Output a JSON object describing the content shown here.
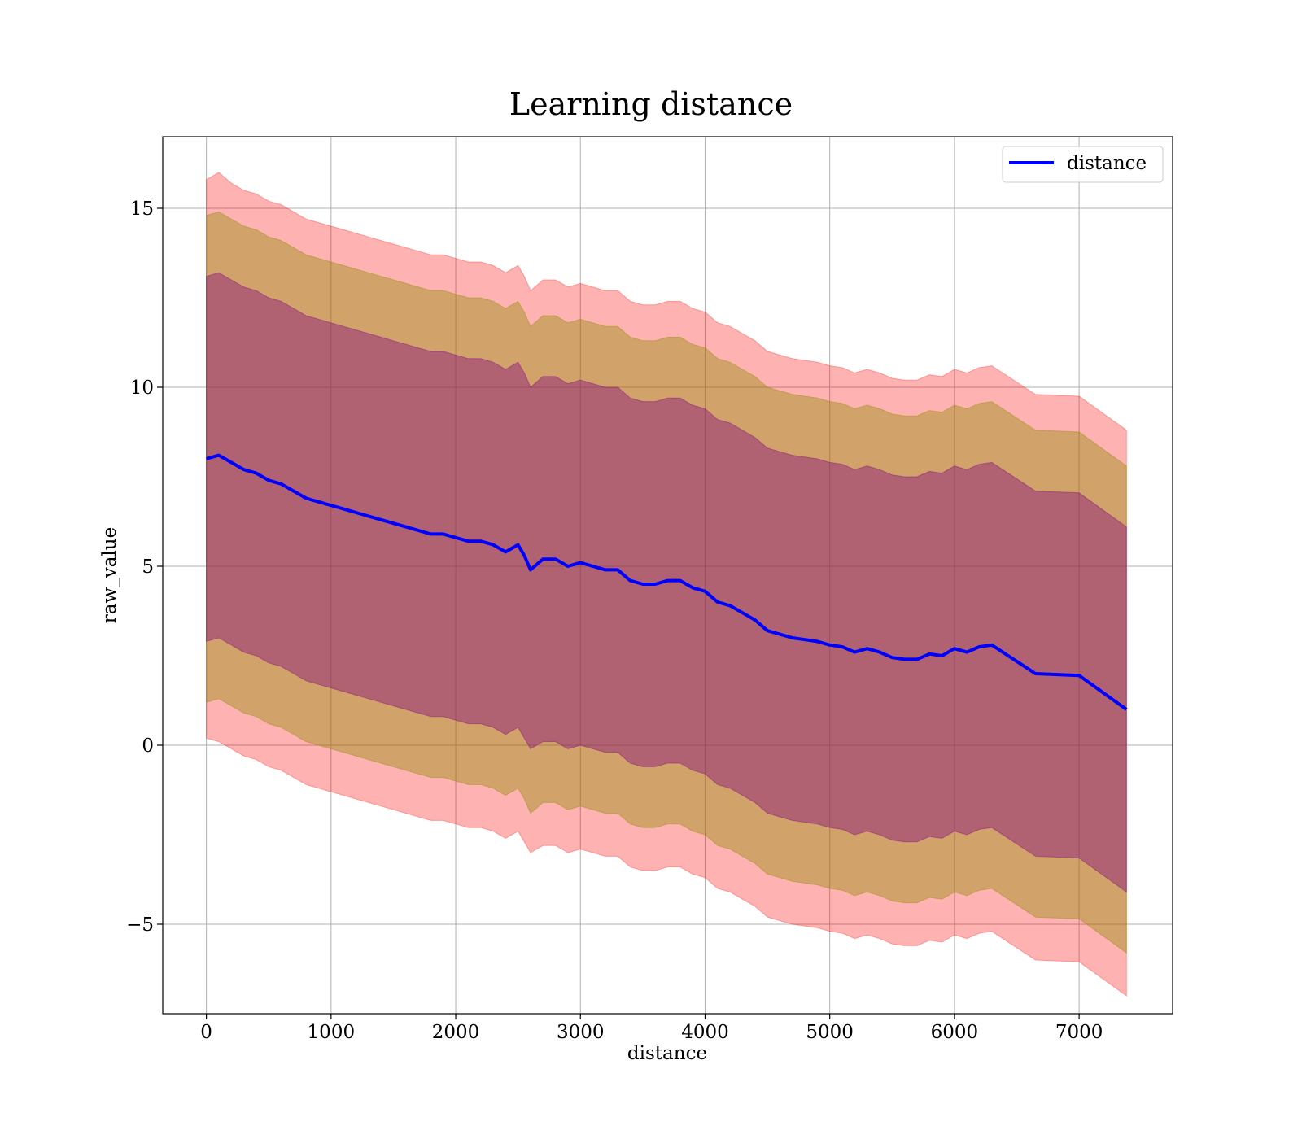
{
  "chart_data": {
    "type": "area",
    "title": "Learning distance",
    "xlabel": "distance",
    "ylabel": "raw_value",
    "xlim": [
      -350,
      7750
    ],
    "ylim": [
      -7.5,
      17.0
    ],
    "xticks": [
      0,
      1000,
      2000,
      3000,
      4000,
      5000,
      6000,
      7000
    ],
    "yticks": [
      -5,
      0,
      5,
      10,
      15
    ],
    "ytick_labels": [
      "−5",
      "0",
      "5",
      "10",
      "15"
    ],
    "grid": true,
    "legend": {
      "position": "top-right",
      "entries": [
        "distance"
      ]
    },
    "colors": {
      "line": "#0000ff",
      "band_outer": "#ff0000",
      "band_middle": "#8b8b00",
      "band_inner": "#800080",
      "grid": "#b0b0b0"
    },
    "x": [
      0,
      100,
      200,
      300,
      400,
      500,
      600,
      700,
      800,
      900,
      1000,
      1100,
      1200,
      1300,
      1400,
      1500,
      1600,
      1700,
      1800,
      1900,
      2000,
      2100,
      2200,
      2300,
      2400,
      2500,
      2550,
      2600,
      2700,
      2800,
      2900,
      3000,
      3100,
      3200,
      3300,
      3400,
      3500,
      3600,
      3700,
      3800,
      3900,
      4000,
      4100,
      4200,
      4300,
      4400,
      4500,
      4600,
      4700,
      4800,
      4900,
      5000,
      5100,
      5200,
      5300,
      5400,
      5500,
      5600,
      5700,
      5800,
      5900,
      6000,
      6100,
      6200,
      6300,
      6650,
      7000,
      7380
    ],
    "series": [
      {
        "name": "distance",
        "values": [
          8.0,
          8.1,
          7.9,
          7.7,
          7.6,
          7.4,
          7.3,
          7.1,
          6.9,
          6.8,
          6.7,
          6.6,
          6.5,
          6.4,
          6.3,
          6.2,
          6.1,
          6.0,
          5.9,
          5.9,
          5.8,
          5.7,
          5.7,
          5.6,
          5.4,
          5.6,
          5.3,
          4.9,
          5.2,
          5.2,
          5.0,
          5.1,
          5.0,
          4.9,
          4.9,
          4.6,
          4.5,
          4.5,
          4.6,
          4.6,
          4.4,
          4.3,
          4.0,
          3.9,
          3.7,
          3.5,
          3.2,
          3.1,
          3.0,
          2.95,
          2.9,
          2.8,
          2.75,
          2.6,
          2.7,
          2.6,
          2.45,
          2.4,
          2.4,
          2.55,
          2.5,
          2.7,
          2.6,
          2.75,
          2.8,
          2.0,
          1.95,
          1.0
        ]
      }
    ],
    "bands": [
      {
        "sigma": 3,
        "lower": [
          0.2,
          0.1,
          -0.1,
          -0.3,
          -0.4,
          -0.6,
          -0.7,
          -0.9,
          -1.1,
          -1.2,
          -1.3,
          -1.4,
          -1.5,
          -1.6,
          -1.7,
          -1.8,
          -1.9,
          -2.0,
          -2.1,
          -2.1,
          -2.2,
          -2.3,
          -2.3,
          -2.4,
          -2.6,
          -2.4,
          -2.7,
          -3.0,
          -2.8,
          -2.8,
          -3.0,
          -2.9,
          -3.0,
          -3.1,
          -3.1,
          -3.4,
          -3.5,
          -3.5,
          -3.4,
          -3.4,
          -3.6,
          -3.7,
          -4.0,
          -4.1,
          -4.3,
          -4.5,
          -4.8,
          -4.9,
          -5.0,
          -5.05,
          -5.1,
          -5.2,
          -5.25,
          -5.4,
          -5.3,
          -5.4,
          -5.55,
          -5.6,
          -5.6,
          -5.45,
          -5.5,
          -5.3,
          -5.4,
          -5.25,
          -5.2,
          -6.0,
          -6.05,
          -7.0
        ],
        "upper": [
          15.8,
          16.0,
          15.7,
          15.5,
          15.4,
          15.2,
          15.1,
          14.9,
          14.7,
          14.6,
          14.5,
          14.4,
          14.3,
          14.2,
          14.1,
          14.0,
          13.9,
          13.8,
          13.7,
          13.7,
          13.6,
          13.5,
          13.5,
          13.4,
          13.2,
          13.4,
          13.1,
          12.7,
          13.0,
          13.0,
          12.8,
          12.9,
          12.8,
          12.7,
          12.7,
          12.4,
          12.3,
          12.3,
          12.4,
          12.4,
          12.2,
          12.1,
          11.8,
          11.7,
          11.5,
          11.3,
          11.0,
          10.9,
          10.8,
          10.75,
          10.7,
          10.6,
          10.55,
          10.4,
          10.5,
          10.4,
          10.25,
          10.2,
          10.2,
          10.35,
          10.3,
          10.5,
          10.4,
          10.55,
          10.6,
          9.8,
          9.75,
          8.8
        ]
      },
      {
        "sigma": 2,
        "lower": [
          1.2,
          1.3,
          1.1,
          0.9,
          0.8,
          0.6,
          0.5,
          0.3,
          0.1,
          0.0,
          -0.1,
          -0.2,
          -0.3,
          -0.4,
          -0.5,
          -0.6,
          -0.7,
          -0.8,
          -0.9,
          -0.9,
          -1.0,
          -1.1,
          -1.1,
          -1.2,
          -1.4,
          -1.2,
          -1.5,
          -1.9,
          -1.6,
          -1.6,
          -1.8,
          -1.7,
          -1.8,
          -1.9,
          -1.9,
          -2.2,
          -2.3,
          -2.3,
          -2.2,
          -2.2,
          -2.4,
          -2.5,
          -2.8,
          -2.9,
          -3.1,
          -3.3,
          -3.6,
          -3.7,
          -3.8,
          -3.85,
          -3.9,
          -4.0,
          -4.05,
          -4.2,
          -4.1,
          -4.2,
          -4.35,
          -4.4,
          -4.4,
          -4.25,
          -4.3,
          -4.1,
          -4.2,
          -4.05,
          -4.0,
          -4.8,
          -4.85,
          -5.8
        ],
        "upper": [
          14.8,
          14.9,
          14.7,
          14.5,
          14.4,
          14.2,
          14.1,
          13.9,
          13.7,
          13.6,
          13.5,
          13.4,
          13.3,
          13.2,
          13.1,
          13.0,
          12.9,
          12.8,
          12.7,
          12.7,
          12.6,
          12.5,
          12.5,
          12.4,
          12.2,
          12.4,
          12.1,
          11.7,
          12.0,
          12.0,
          11.8,
          11.9,
          11.8,
          11.7,
          11.7,
          11.4,
          11.3,
          11.3,
          11.4,
          11.4,
          11.2,
          11.1,
          10.8,
          10.7,
          10.5,
          10.3,
          10.0,
          9.9,
          9.8,
          9.75,
          9.7,
          9.6,
          9.55,
          9.4,
          9.5,
          9.4,
          9.25,
          9.2,
          9.2,
          9.35,
          9.3,
          9.5,
          9.4,
          9.55,
          9.6,
          8.8,
          8.75,
          7.8
        ]
      },
      {
        "sigma": 1,
        "lower": [
          2.9,
          3.0,
          2.8,
          2.6,
          2.5,
          2.3,
          2.2,
          2.0,
          1.8,
          1.7,
          1.6,
          1.5,
          1.4,
          1.3,
          1.2,
          1.1,
          1.0,
          0.9,
          0.8,
          0.8,
          0.7,
          0.6,
          0.6,
          0.5,
          0.3,
          0.5,
          0.2,
          -0.1,
          0.1,
          0.1,
          -0.1,
          0.0,
          -0.1,
          -0.2,
          -0.2,
          -0.5,
          -0.6,
          -0.6,
          -0.5,
          -0.5,
          -0.7,
          -0.8,
          -1.1,
          -1.2,
          -1.4,
          -1.6,
          -1.9,
          -2.0,
          -2.1,
          -2.15,
          -2.2,
          -2.3,
          -2.35,
          -2.5,
          -2.4,
          -2.5,
          -2.65,
          -2.7,
          -2.7,
          -2.55,
          -2.6,
          -2.4,
          -2.5,
          -2.35,
          -2.3,
          -3.1,
          -3.15,
          -4.1
        ],
        "upper": [
          13.1,
          13.2,
          13.0,
          12.8,
          12.7,
          12.5,
          12.4,
          12.2,
          12.0,
          11.9,
          11.8,
          11.7,
          11.6,
          11.5,
          11.4,
          11.3,
          11.2,
          11.1,
          11.0,
          11.0,
          10.9,
          10.8,
          10.8,
          10.7,
          10.5,
          10.7,
          10.4,
          10.0,
          10.3,
          10.3,
          10.1,
          10.2,
          10.1,
          10.0,
          10.0,
          9.7,
          9.6,
          9.6,
          9.7,
          9.7,
          9.5,
          9.4,
          9.1,
          9.0,
          8.8,
          8.6,
          8.3,
          8.2,
          8.1,
          8.05,
          8.0,
          7.9,
          7.85,
          7.7,
          7.8,
          7.7,
          7.55,
          7.5,
          7.5,
          7.65,
          7.6,
          7.8,
          7.7,
          7.85,
          7.9,
          7.1,
          7.05,
          6.1
        ]
      }
    ]
  }
}
